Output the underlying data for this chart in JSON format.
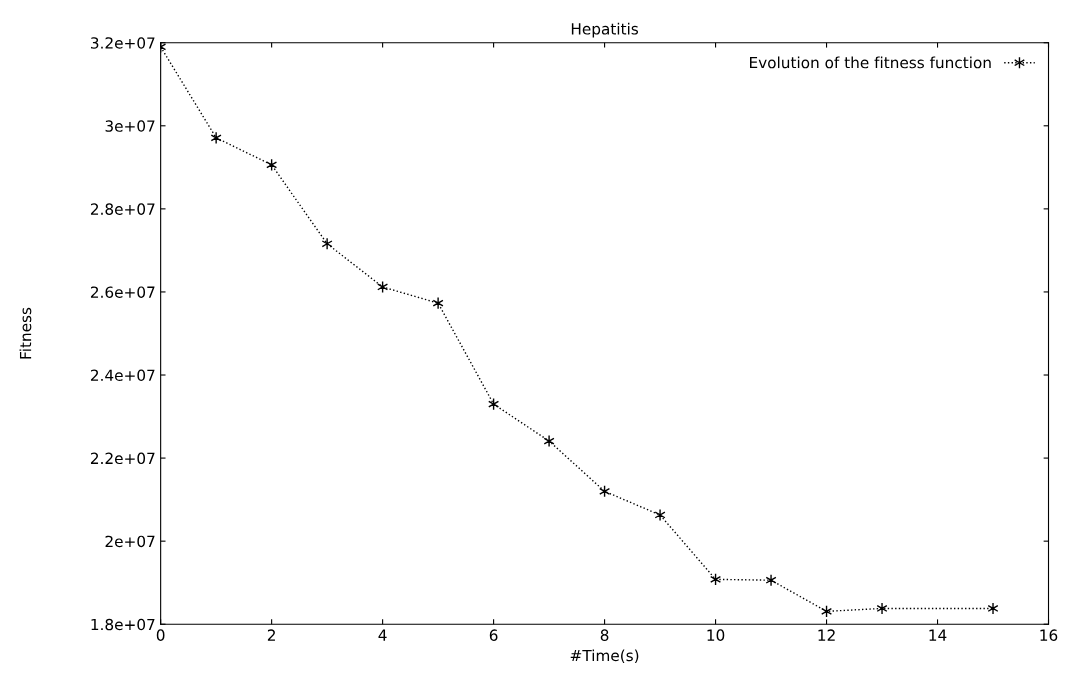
{
  "chart_data": {
    "type": "line",
    "title": "Hepatitis",
    "xlabel": "#Time(s)",
    "ylabel": "Fitness",
    "x": [
      0,
      1,
      2,
      3,
      4,
      5,
      6,
      7,
      8,
      9,
      10,
      11,
      12,
      13,
      15
    ],
    "series": [
      {
        "name": "Evolution of the fitness function",
        "color": "#000000",
        "values": [
          31900000,
          29710000,
          29060000,
          27160000,
          26120000,
          25730000,
          23300000,
          22410000,
          21200000,
          20630000,
          19080000,
          19060000,
          18310000,
          18380000,
          18380000
        ]
      }
    ],
    "xlim": [
      0,
      16
    ],
    "xticks": [
      0,
      2,
      4,
      6,
      8,
      10,
      12,
      14,
      16
    ],
    "ylim": [
      18000000,
      32000000
    ],
    "yticks": [
      {
        "value": 18000000,
        "label": "1.8e+07"
      },
      {
        "value": 20000000,
        "label": "2e+07"
      },
      {
        "value": 22000000,
        "label": "2.2e+07"
      },
      {
        "value": 24000000,
        "label": "2.4e+07"
      },
      {
        "value": 26000000,
        "label": "2.6e+07"
      },
      {
        "value": 28000000,
        "label": "2.8e+07"
      },
      {
        "value": 30000000,
        "label": "3e+07"
      },
      {
        "value": 32000000,
        "label": "3.2e+07"
      }
    ],
    "grid": false,
    "legend": "top right",
    "marker": "cross",
    "line_style": "dotted"
  }
}
